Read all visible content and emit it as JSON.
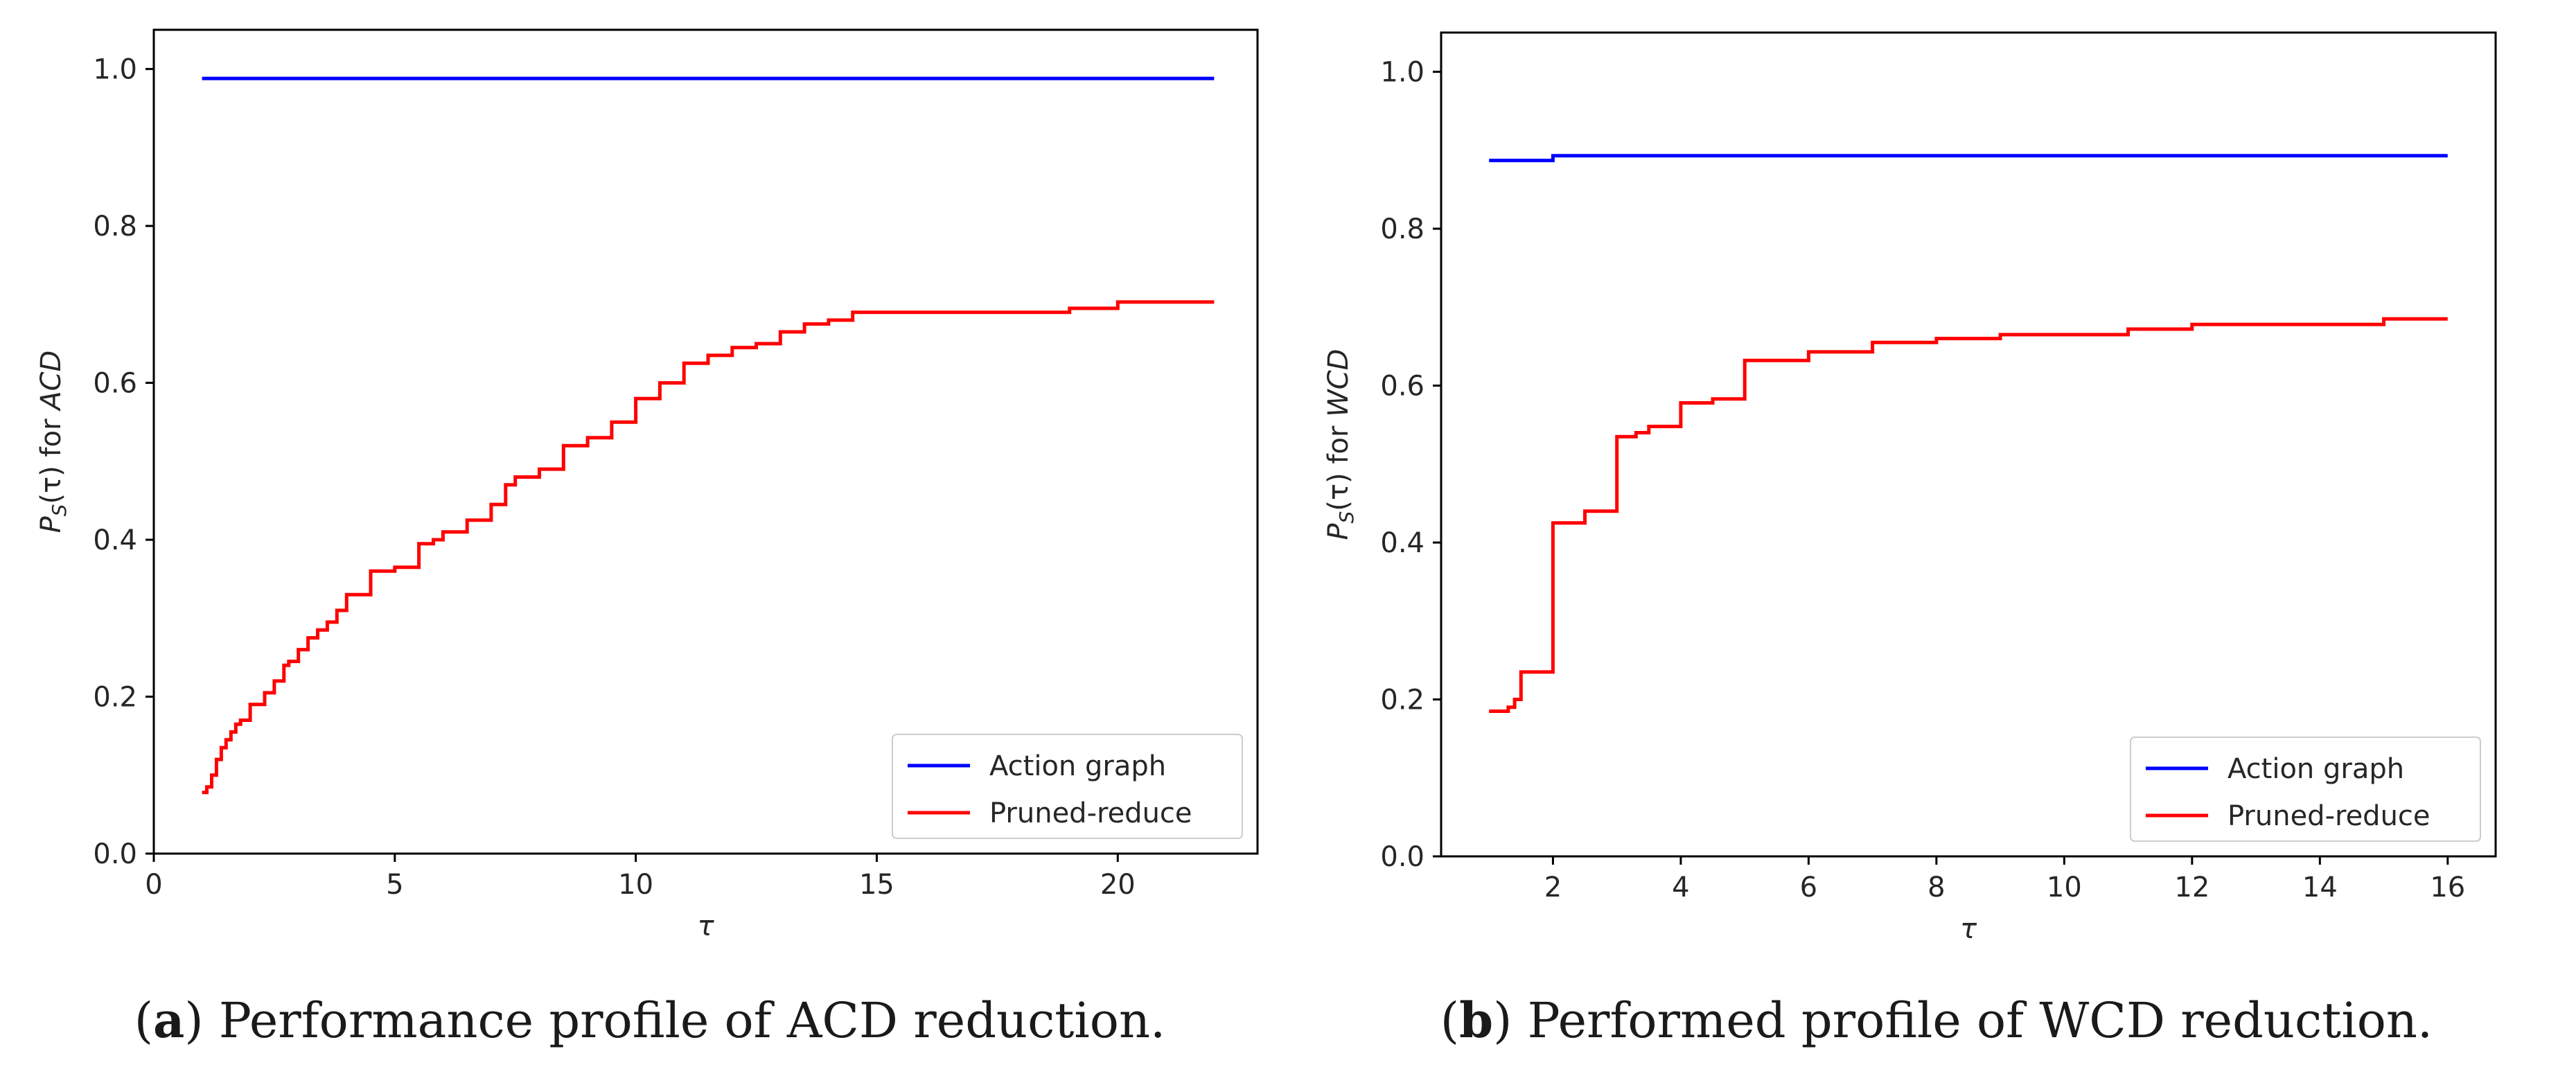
{
  "chart_data": [
    {
      "type": "line",
      "panel_label": "a",
      "caption": "Performance profile of ACD reduction.",
      "xlabel": "τ",
      "ylabel_prefix": "P",
      "ylabel_sub": "S",
      "ylabel_mid": "(τ) for ",
      "ylabel_metric": "ACD",
      "xlim": [
        0,
        22.9
      ],
      "ylim": [
        0,
        1.05
      ],
      "xticks": [
        0,
        5,
        10,
        15,
        20
      ],
      "yticks": [
        0.0,
        0.2,
        0.4,
        0.6,
        0.8,
        1.0
      ],
      "legend_position": "lower-right",
      "grid": false,
      "series": [
        {
          "name": "Action graph",
          "color": "#0000ff",
          "x": [
            1,
            22
          ],
          "y": [
            0.988,
            0.988
          ]
        },
        {
          "name": "Pruned-reduce",
          "color": "#ff0000",
          "x": [
            1,
            1.1,
            1.2,
            1.3,
            1.4,
            1.5,
            1.6,
            1.7,
            1.8,
            2,
            2.3,
            2.5,
            2.7,
            2.8,
            3,
            3.2,
            3.4,
            3.6,
            3.8,
            4,
            4.5,
            5,
            5.5,
            5.8,
            6,
            6.5,
            7,
            7.3,
            7.5,
            8,
            8.5,
            9,
            9.5,
            10,
            10.5,
            11,
            11.5,
            12,
            12.5,
            13,
            13.5,
            14,
            14.5,
            19,
            20,
            22
          ],
          "y": [
            0.078,
            0.085,
            0.1,
            0.12,
            0.135,
            0.145,
            0.155,
            0.165,
            0.17,
            0.19,
            0.205,
            0.22,
            0.24,
            0.245,
            0.26,
            0.275,
            0.285,
            0.295,
            0.31,
            0.33,
            0.36,
            0.365,
            0.395,
            0.4,
            0.41,
            0.425,
            0.445,
            0.47,
            0.48,
            0.49,
            0.52,
            0.53,
            0.55,
            0.58,
            0.6,
            0.625,
            0.635,
            0.645,
            0.65,
            0.665,
            0.675,
            0.68,
            0.69,
            0.695,
            0.703,
            0.703
          ]
        }
      ]
    },
    {
      "type": "line",
      "panel_label": "b",
      "caption": "Performed profile of WCD reduction.",
      "xlabel": "τ",
      "ylabel_prefix": "P",
      "ylabel_sub": "S",
      "ylabel_mid": "(τ) for ",
      "ylabel_metric": "WCD",
      "xlim": [
        0.25,
        16.75
      ],
      "ylim": [
        0,
        1.05
      ],
      "xticks": [
        2,
        4,
        6,
        8,
        10,
        12,
        14,
        16
      ],
      "yticks": [
        0.0,
        0.2,
        0.4,
        0.6,
        0.8,
        1.0
      ],
      "legend_position": "lower-right",
      "grid": false,
      "series": [
        {
          "name": "Action graph",
          "color": "#0000ff",
          "x": [
            1,
            2,
            16
          ],
          "y": [
            0.887,
            0.893,
            0.893
          ]
        },
        {
          "name": "Pruned-reduce",
          "color": "#ff0000",
          "x": [
            1,
            1.3,
            1.4,
            1.5,
            2,
            2.5,
            3,
            3.3,
            3.5,
            4,
            4.5,
            5,
            6,
            7,
            8,
            9,
            11,
            12,
            15,
            16
          ],
          "y": [
            0.185,
            0.19,
            0.2,
            0.235,
            0.425,
            0.44,
            0.535,
            0.54,
            0.548,
            0.578,
            0.583,
            0.632,
            0.643,
            0.655,
            0.66,
            0.665,
            0.672,
            0.678,
            0.685,
            0.685
          ]
        }
      ]
    }
  ]
}
